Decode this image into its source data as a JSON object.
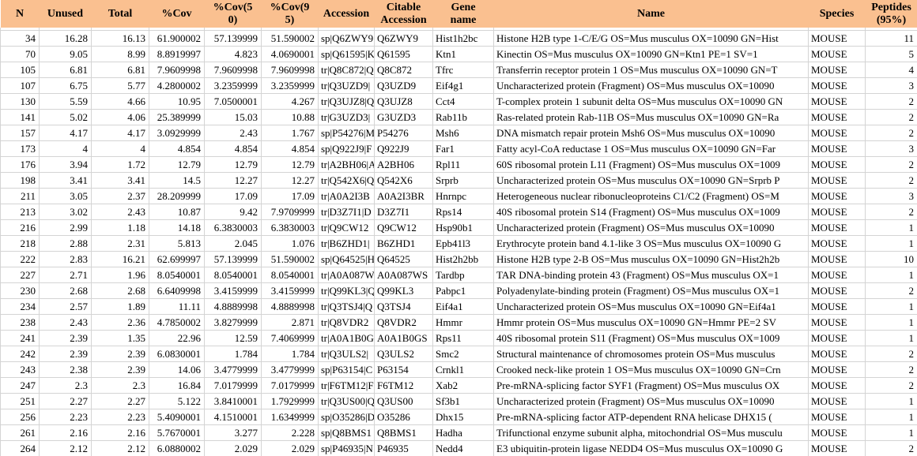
{
  "colors": {
    "header_bg": "#FAC090",
    "header_text": "#000000",
    "grid_line": "#D4D4D4",
    "row_bg": "#FFFFFF",
    "cell_text": "#000000"
  },
  "table": {
    "columns": [
      {
        "label": "N"
      },
      {
        "label": "Unused"
      },
      {
        "label": "Total"
      },
      {
        "label": "%Cov"
      },
      {
        "label": "%Cov(50)"
      },
      {
        "label": "%Cov(95)"
      },
      {
        "label": "Accession"
      },
      {
        "label": "Citable Accession"
      },
      {
        "label": "Gene name"
      },
      {
        "label": "Name"
      },
      {
        "label": "Species"
      },
      {
        "label": "Peptides (95%)"
      }
    ],
    "rows": [
      {
        "n": "34",
        "unused": "16.28",
        "total": "16.13",
        "cov": "61.900002",
        "cov50": "57.139999",
        "cov95": "51.590002",
        "accession": "sp|Q6ZWY9|",
        "citable": "Q6ZWY9",
        "gene": "Hist1h2bc",
        "name": "Histone H2B type 1-C/E/G OS=Mus musculus OX=10090 GN=Hist",
        "species": "MOUSE",
        "peptides": "11"
      },
      {
        "n": "70",
        "unused": "9.05",
        "total": "8.99",
        "cov": "8.8919997",
        "cov50": "4.823",
        "cov95": "4.0690001",
        "accession": "sp|Q61595|K",
        "citable": "Q61595",
        "gene": "Ktn1",
        "name": "Kinectin OS=Mus musculus OX=10090 GN=Ktn1 PE=1 SV=1",
        "species": "MOUSE",
        "peptides": "5"
      },
      {
        "n": "105",
        "unused": "6.81",
        "total": "6.81",
        "cov": "7.9609998",
        "cov50": "7.9609998",
        "cov95": "7.9609998",
        "accession": "tr|Q8C872|Q",
        "citable": "Q8C872",
        "gene": "Tfrc",
        "name": "Transferrin receptor protein 1 OS=Mus musculus OX=10090 GN=T",
        "species": "MOUSE",
        "peptides": "4"
      },
      {
        "n": "107",
        "unused": "6.75",
        "total": "5.77",
        "cov": "4.2800002",
        "cov50": "3.2359999",
        "cov95": "3.2359999",
        "accession": "tr|Q3UZD9|",
        "citable": "Q3UZD9",
        "gene": "Eif4g1",
        "name": "Uncharacterized protein (Fragment) OS=Mus musculus OX=10090",
        "species": "MOUSE",
        "peptides": "3"
      },
      {
        "n": "130",
        "unused": "5.59",
        "total": "4.66",
        "cov": "10.95",
        "cov50": "7.0500001",
        "cov95": "4.267",
        "accession": "tr|Q3UJZ8|Q",
        "citable": "Q3UJZ8",
        "gene": "Cct4",
        "name": "T-complex protein 1 subunit delta OS=Mus musculus OX=10090 GN",
        "species": "MOUSE",
        "peptides": "2"
      },
      {
        "n": "141",
        "unused": "5.02",
        "total": "4.06",
        "cov": "25.389999",
        "cov50": "15.03",
        "cov95": "10.88",
        "accession": "tr|G3UZD3|",
        "citable": "G3UZD3",
        "gene": "Rab11b",
        "name": "Ras-related protein Rab-11B OS=Mus musculus OX=10090 GN=Ra",
        "species": "MOUSE",
        "peptides": "2"
      },
      {
        "n": "157",
        "unused": "4.17",
        "total": "4.17",
        "cov": "3.0929999",
        "cov50": "2.43",
        "cov95": "1.767",
        "accession": "sp|P54276|M",
        "citable": "P54276",
        "gene": "Msh6",
        "name": "DNA mismatch repair protein Msh6 OS=Mus musculus OX=10090",
        "species": "MOUSE",
        "peptides": "2"
      },
      {
        "n": "173",
        "unused": "4",
        "total": "4",
        "cov": "4.854",
        "cov50": "4.854",
        "cov95": "4.854",
        "accession": "sp|Q922J9|F",
        "citable": "Q922J9",
        "gene": "Far1",
        "name": "Fatty acyl-CoA reductase 1 OS=Mus musculus OX=10090 GN=Far",
        "species": "MOUSE",
        "peptides": "3"
      },
      {
        "n": "176",
        "unused": "3.94",
        "total": "1.72",
        "cov": "12.79",
        "cov50": "12.79",
        "cov95": "12.79",
        "accession": "tr|A2BH06|A",
        "citable": "A2BH06",
        "gene": "Rpl11",
        "name": "60S ribosomal protein L11 (Fragment) OS=Mus musculus OX=1009",
        "species": "MOUSE",
        "peptides": "2"
      },
      {
        "n": "198",
        "unused": "3.41",
        "total": "3.41",
        "cov": "14.5",
        "cov50": "12.27",
        "cov95": "12.27",
        "accession": "tr|Q542X6|Q",
        "citable": "Q542X6",
        "gene": "Srprb",
        "name": "Uncharacterized protein OS=Mus musculus OX=10090 GN=Srprb P",
        "species": "MOUSE",
        "peptides": "2"
      },
      {
        "n": "211",
        "unused": "3.05",
        "total": "2.37",
        "cov": "28.209999",
        "cov50": "17.09",
        "cov95": "17.09",
        "accession": "tr|A0A2I3B",
        "citable": "A0A2I3BR",
        "gene": "Hnrnpc",
        "name": "Heterogeneous nuclear ribonucleoproteins C1/C2 (Fragment) OS=M",
        "species": "MOUSE",
        "peptides": "3"
      },
      {
        "n": "213",
        "unused": "3.02",
        "total": "2.43",
        "cov": "10.87",
        "cov50": "9.42",
        "cov95": "7.9709999",
        "accession": "tr|D3Z7I1|D",
        "citable": "D3Z7I1",
        "gene": "Rps14",
        "name": "40S ribosomal protein S14 (Fragment) OS=Mus musculus OX=1009",
        "species": "MOUSE",
        "peptides": "2"
      },
      {
        "n": "216",
        "unused": "2.99",
        "total": "1.18",
        "cov": "14.18",
        "cov50": "6.3830003",
        "cov95": "6.3830003",
        "accession": "tr|Q9CW12",
        "citable": "Q9CW12",
        "gene": "Hsp90b1",
        "name": "Uncharacterized protein (Fragment) OS=Mus musculus OX=10090",
        "species": "MOUSE",
        "peptides": "1"
      },
      {
        "n": "218",
        "unused": "2.88",
        "total": "2.31",
        "cov": "5.813",
        "cov50": "2.045",
        "cov95": "1.076",
        "accession": "tr|B6ZHD1|",
        "citable": "B6ZHD1",
        "gene": "Epb41l3",
        "name": "Erythrocyte protein band 4.1-like 3 OS=Mus musculus OX=10090 G",
        "species": "MOUSE",
        "peptides": "1"
      },
      {
        "n": "222",
        "unused": "2.83",
        "total": "16.21",
        "cov": "62.699997",
        "cov50": "57.139999",
        "cov95": "51.590002",
        "accession": "sp|Q64525|H",
        "citable": "Q64525",
        "gene": "Hist2h2bb",
        "name": "Histone H2B type 2-B OS=Mus musculus OX=10090 GN=Hist2h2b",
        "species": "MOUSE",
        "peptides": "10"
      },
      {
        "n": "227",
        "unused": "2.71",
        "total": "1.96",
        "cov": "8.0540001",
        "cov50": "8.0540001",
        "cov95": "8.0540001",
        "accession": "tr|A0A087W",
        "citable": "A0A087WS",
        "gene": "Tardbp",
        "name": "TAR DNA-binding protein 43 (Fragment) OS=Mus musculus OX=1",
        "species": "MOUSE",
        "peptides": "1"
      },
      {
        "n": "230",
        "unused": "2.68",
        "total": "2.68",
        "cov": "6.6409998",
        "cov50": "3.4159999",
        "cov95": "3.4159999",
        "accession": "tr|Q99KL3|Q",
        "citable": "Q99KL3",
        "gene": "Pabpc1",
        "name": "Polyadenylate-binding protein (Fragment) OS=Mus musculus OX=1",
        "species": "MOUSE",
        "peptides": "2"
      },
      {
        "n": "234",
        "unused": "2.57",
        "total": "1.89",
        "cov": "11.11",
        "cov50": "4.8889998",
        "cov95": "4.8889998",
        "accession": "tr|Q3TSJ4|Q",
        "citable": "Q3TSJ4",
        "gene": "Eif4a1",
        "name": "Uncharacterized protein OS=Mus musculus OX=10090 GN=Eif4a1",
        "species": "MOUSE",
        "peptides": "1"
      },
      {
        "n": "238",
        "unused": "2.43",
        "total": "2.36",
        "cov": "4.7850002",
        "cov50": "3.8279999",
        "cov95": "2.871",
        "accession": "tr|Q8VDR2",
        "citable": "Q8VDR2",
        "gene": "Hmmr",
        "name": "Hmmr protein OS=Mus musculus OX=10090 GN=Hmmr PE=2 SV",
        "species": "MOUSE",
        "peptides": "1"
      },
      {
        "n": "241",
        "unused": "2.39",
        "total": "1.35",
        "cov": "22.96",
        "cov50": "12.59",
        "cov95": "7.4069999",
        "accession": "tr|A0A1B0G",
        "citable": "A0A1B0GS",
        "gene": "Rps11",
        "name": "40S ribosomal protein S11 (Fragment) OS=Mus musculus OX=1009",
        "species": "MOUSE",
        "peptides": "1"
      },
      {
        "n": "242",
        "unused": "2.39",
        "total": "2.39",
        "cov": "6.0830001",
        "cov50": "1.784",
        "cov95": "1.784",
        "accession": "tr|Q3ULS2|",
        "citable": "Q3ULS2",
        "gene": "Smc2",
        "name": "Structural maintenance of chromosomes protein OS=Mus musculus",
        "species": "MOUSE",
        "peptides": "2"
      },
      {
        "n": "243",
        "unused": "2.38",
        "total": "2.39",
        "cov": "14.06",
        "cov50": "3.4779999",
        "cov95": "3.4779999",
        "accession": "sp|P63154|C",
        "citable": "P63154",
        "gene": "Crnkl1",
        "name": "Crooked neck-like protein 1 OS=Mus musculus OX=10090 GN=Crn",
        "species": "MOUSE",
        "peptides": "2"
      },
      {
        "n": "247",
        "unused": "2.3",
        "total": "2.3",
        "cov": "16.84",
        "cov50": "7.0179999",
        "cov95": "7.0179999",
        "accession": "tr|F6TM12|F",
        "citable": "F6TM12",
        "gene": "Xab2",
        "name": "Pre-mRNA-splicing factor SYF1 (Fragment) OS=Mus musculus OX",
        "species": "MOUSE",
        "peptides": "2"
      },
      {
        "n": "251",
        "unused": "2.27",
        "total": "2.27",
        "cov": "5.122",
        "cov50": "3.8410001",
        "cov95": "1.7929999",
        "accession": "tr|Q3US00|Q",
        "citable": "Q3US00",
        "gene": "Sf3b1",
        "name": "Uncharacterized protein (Fragment) OS=Mus musculus OX=10090",
        "species": "MOUSE",
        "peptides": "1"
      },
      {
        "n": "256",
        "unused": "2.23",
        "total": "2.23",
        "cov": "5.4090001",
        "cov50": "4.1510001",
        "cov95": "1.6349999",
        "accession": "sp|O35286|D",
        "citable": "O35286",
        "gene": "Dhx15",
        "name": "Pre-mRNA-splicing factor ATP-dependent RNA helicase DHX15 (",
        "species": "MOUSE",
        "peptides": "1"
      },
      {
        "n": "261",
        "unused": "2.16",
        "total": "2.16",
        "cov": "5.7670001",
        "cov50": "3.277",
        "cov95": "2.228",
        "accession": "sp|Q8BMS1",
        "citable": "Q8BMS1",
        "gene": "Hadha",
        "name": "Trifunctional enzyme subunit alpha, mitochondrial OS=Mus musculu",
        "species": "MOUSE",
        "peptides": "1"
      },
      {
        "n": "264",
        "unused": "2.12",
        "total": "2.12",
        "cov": "6.0880002",
        "cov50": "2.029",
        "cov95": "2.029",
        "accession": "sp|P46935|N",
        "citable": "P46935",
        "gene": "Nedd4",
        "name": "E3 ubiquitin-protein ligase NEDD4 OS=Mus musculus OX=10090 G",
        "species": "MOUSE",
        "peptides": "2"
      }
    ]
  }
}
